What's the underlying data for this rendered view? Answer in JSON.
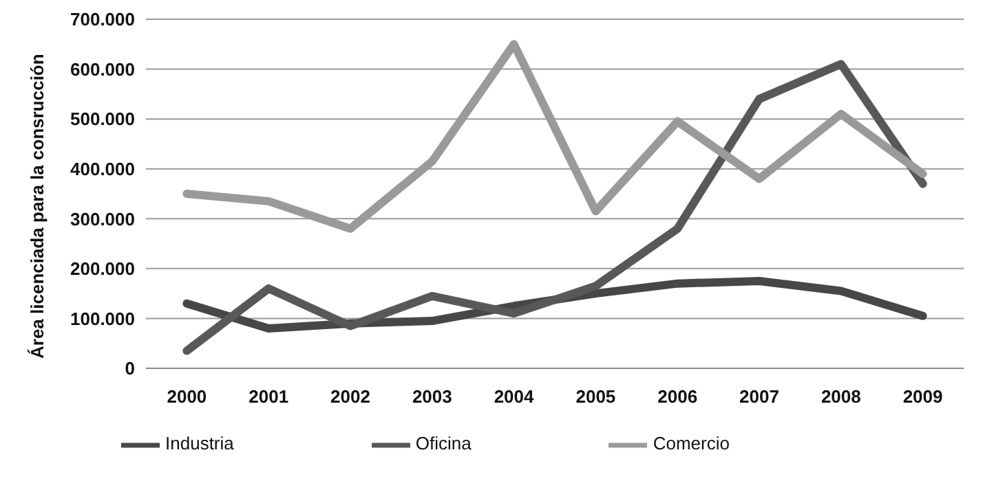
{
  "chart_data": {
    "type": "line",
    "ylabel": "Área licenciada para la consrucción",
    "categories": [
      "2000",
      "2001",
      "2002",
      "2003",
      "2004",
      "2005",
      "2006",
      "2007",
      "2008",
      "2009"
    ],
    "series": [
      {
        "name": "Industria",
        "color": "#474747",
        "values": [
          130000,
          80000,
          90000,
          95000,
          125000,
          150000,
          170000,
          175000,
          155000,
          105000
        ]
      },
      {
        "name": "Oficina",
        "color": "#585858",
        "values": [
          35000,
          160000,
          85000,
          145000,
          110000,
          165000,
          280000,
          540000,
          610000,
          370000
        ]
      },
      {
        "name": "Comercio",
        "color": "#9a9a9a",
        "values": [
          350000,
          335000,
          280000,
          415000,
          650000,
          315000,
          495000,
          380000,
          510000,
          390000
        ]
      }
    ],
    "ylim": [
      0,
      700000
    ],
    "yticks": [
      {
        "value": 0,
        "label": "0"
      },
      {
        "value": 100000,
        "label": "100.000"
      },
      {
        "value": 200000,
        "label": "200.000"
      },
      {
        "value": 300000,
        "label": "300.000"
      },
      {
        "value": 400000,
        "label": "400.000"
      },
      {
        "value": 500000,
        "label": "500.000"
      },
      {
        "value": 600000,
        "label": "600.000"
      },
      {
        "value": 700000,
        "label": "700.000"
      }
    ],
    "grid": "y",
    "legend": "bottom",
    "marker": "none",
    "line_style": "solid"
  }
}
